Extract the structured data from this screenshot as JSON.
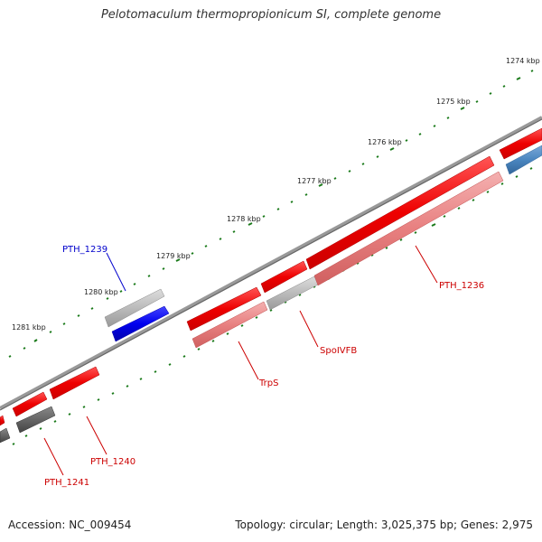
{
  "title": "Pelotomaculum thermopropionicum SI, complete genome",
  "footer": {
    "accession": "Accession: NC_009454",
    "stats": "Topology: circular; Length: 3,025,375 bp; Genes: 2,975"
  },
  "ticks": [
    "1274 kbp",
    "1275 kbp",
    "1276 kbp",
    "1277 kbp",
    "1278 kbp",
    "1279 kbp",
    "1280 kbp",
    "1281 kbp"
  ],
  "gene_labels": [
    {
      "text": "PTH_1239",
      "color": "#0000cc"
    },
    {
      "text": "PTH_1236",
      "color": "#cc0000"
    },
    {
      "text": "SpoIVFB",
      "color": "#cc0000"
    },
    {
      "text": "TrpS",
      "color": "#cc0000"
    },
    {
      "text": "PTH_1240",
      "color": "#cc0000"
    },
    {
      "text": "PTH_1241",
      "color": "#cc0000"
    }
  ],
  "colors": {
    "cds_red": "#ee0000",
    "cds_pink": "#e88080",
    "cds_grey": "#bbbbbb",
    "cds_darkgrey": "#666666",
    "cds_blue": "#0000ee",
    "cds_steel": "#4a86c0",
    "backbone": "#888888",
    "tick": "#1a7a1a"
  }
}
